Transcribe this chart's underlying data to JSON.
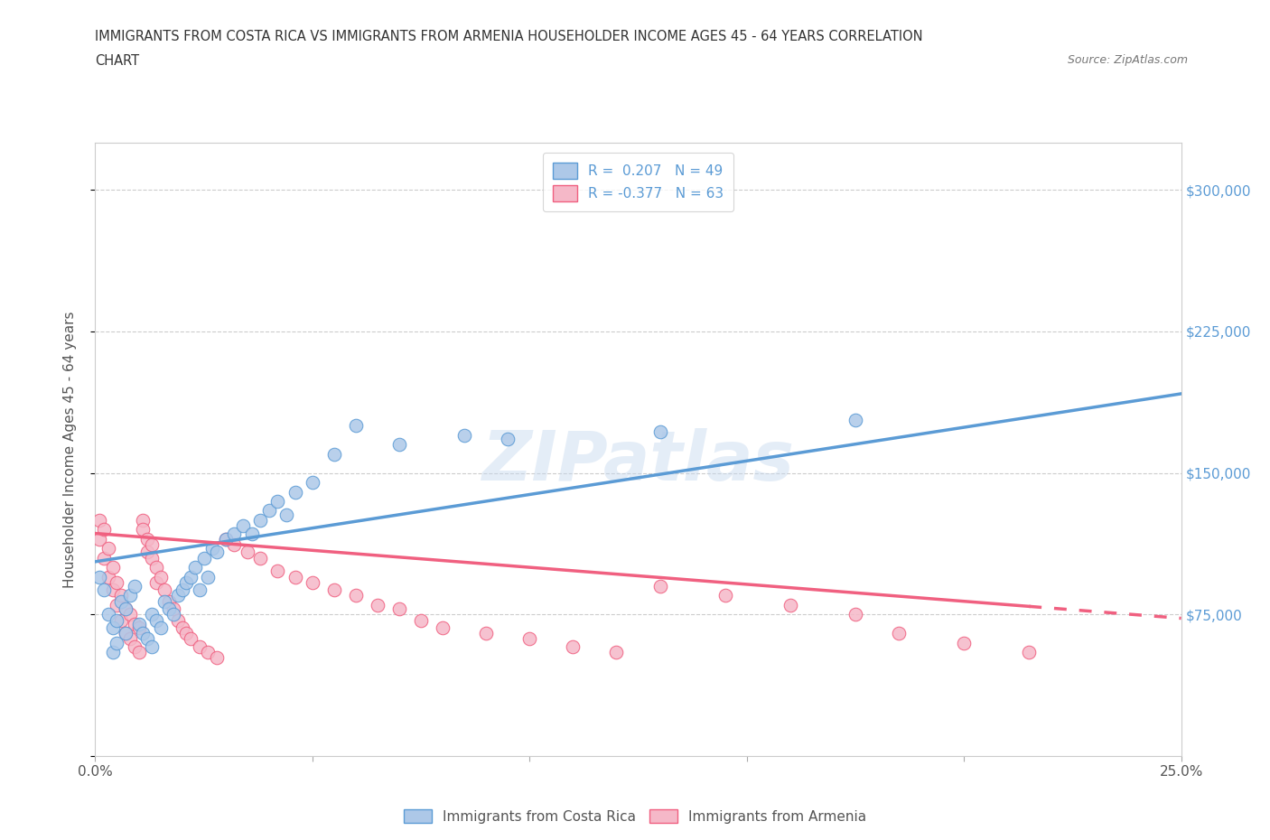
{
  "title_line1": "IMMIGRANTS FROM COSTA RICA VS IMMIGRANTS FROM ARMENIA HOUSEHOLDER INCOME AGES 45 - 64 YEARS CORRELATION",
  "title_line2": "CHART",
  "source_text": "Source: ZipAtlas.com",
  "ylabel": "Householder Income Ages 45 - 64 years",
  "xlim": [
    0.0,
    0.25
  ],
  "ylim": [
    0,
    325000
  ],
  "xticks": [
    0.0,
    0.05,
    0.1,
    0.15,
    0.2,
    0.25
  ],
  "xticklabels": [
    "0.0%",
    "",
    "",
    "",
    "",
    "25.0%"
  ],
  "yticks": [
    0,
    75000,
    150000,
    225000,
    300000
  ],
  "yticklabels": [
    "",
    "$75,000",
    "$150,000",
    "$225,000",
    "$300,000"
  ],
  "R_costa_rica": 0.207,
  "N_costa_rica": 49,
  "R_armenia": -0.377,
  "N_armenia": 63,
  "color_costa_rica": "#adc8e8",
  "color_armenia": "#f5b8c8",
  "line_color_costa_rica": "#5b9bd5",
  "line_color_armenia": "#f06080",
  "watermark": "ZIPatlas",
  "cr_line_x0": 0.0,
  "cr_line_y0": 103000,
  "cr_line_x1": 0.25,
  "cr_line_y1": 192000,
  "arm_line_x0": 0.0,
  "arm_line_y0": 118000,
  "arm_line_x1": 0.25,
  "arm_line_y1": 73000,
  "costa_rica_x": [
    0.001,
    0.002,
    0.003,
    0.004,
    0.004,
    0.005,
    0.005,
    0.006,
    0.007,
    0.007,
    0.008,
    0.009,
    0.01,
    0.011,
    0.012,
    0.013,
    0.013,
    0.014,
    0.015,
    0.016,
    0.017,
    0.018,
    0.019,
    0.02,
    0.021,
    0.022,
    0.023,
    0.024,
    0.025,
    0.026,
    0.027,
    0.028,
    0.03,
    0.032,
    0.034,
    0.036,
    0.038,
    0.04,
    0.042,
    0.044,
    0.046,
    0.05,
    0.055,
    0.06,
    0.07,
    0.085,
    0.095,
    0.13,
    0.175
  ],
  "costa_rica_y": [
    95000,
    88000,
    75000,
    68000,
    55000,
    72000,
    60000,
    82000,
    78000,
    65000,
    85000,
    90000,
    70000,
    65000,
    62000,
    75000,
    58000,
    72000,
    68000,
    82000,
    78000,
    75000,
    85000,
    88000,
    92000,
    95000,
    100000,
    88000,
    105000,
    95000,
    110000,
    108000,
    115000,
    118000,
    122000,
    118000,
    125000,
    130000,
    135000,
    128000,
    140000,
    145000,
    160000,
    175000,
    165000,
    170000,
    168000,
    172000,
    178000
  ],
  "armenia_x": [
    0.001,
    0.001,
    0.002,
    0.002,
    0.003,
    0.003,
    0.004,
    0.004,
    0.005,
    0.005,
    0.006,
    0.006,
    0.007,
    0.007,
    0.008,
    0.008,
    0.009,
    0.009,
    0.01,
    0.01,
    0.011,
    0.011,
    0.012,
    0.012,
    0.013,
    0.013,
    0.014,
    0.014,
    0.015,
    0.016,
    0.017,
    0.018,
    0.019,
    0.02,
    0.021,
    0.022,
    0.024,
    0.026,
    0.028,
    0.03,
    0.032,
    0.035,
    0.038,
    0.042,
    0.046,
    0.05,
    0.055,
    0.06,
    0.065,
    0.07,
    0.075,
    0.08,
    0.09,
    0.1,
    0.11,
    0.12,
    0.13,
    0.145,
    0.16,
    0.175,
    0.185,
    0.2,
    0.215
  ],
  "armenia_y": [
    125000,
    115000,
    120000,
    105000,
    110000,
    95000,
    100000,
    88000,
    92000,
    80000,
    85000,
    72000,
    78000,
    65000,
    75000,
    62000,
    70000,
    58000,
    68000,
    55000,
    125000,
    120000,
    115000,
    108000,
    112000,
    105000,
    100000,
    92000,
    95000,
    88000,
    82000,
    78000,
    72000,
    68000,
    65000,
    62000,
    58000,
    55000,
    52000,
    115000,
    112000,
    108000,
    105000,
    98000,
    95000,
    92000,
    88000,
    85000,
    80000,
    78000,
    72000,
    68000,
    65000,
    62000,
    58000,
    55000,
    90000,
    85000,
    80000,
    75000,
    65000,
    60000,
    55000
  ]
}
